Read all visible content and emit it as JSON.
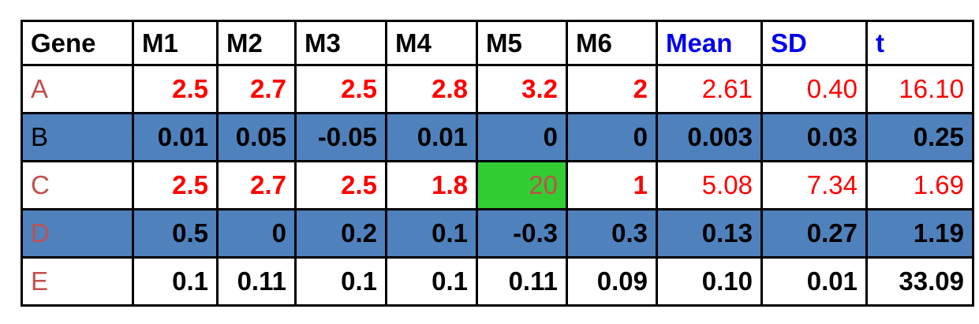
{
  "headers": [
    "Gene",
    "M1",
    "M2",
    "M3",
    "M4",
    "M5",
    "M6",
    "Mean",
    "SD",
    "t"
  ],
  "rows": [
    {
      "gene": "A",
      "values": [
        "2.5",
        "2.7",
        "2.5",
        "2.8",
        "3.2",
        "2",
        "2.61",
        "0.40",
        "16.10"
      ]
    },
    {
      "gene": "B",
      "values": [
        "0.01",
        "0.05",
        "-0.05",
        "0.01",
        "0",
        "0",
        "0.003",
        "0.03",
        "0.25"
      ]
    },
    {
      "gene": "C",
      "values": [
        "2.5",
        "2.7",
        "2.5",
        "1.8",
        "20",
        "1",
        "5.08",
        "7.34",
        "1.69"
      ]
    },
    {
      "gene": "D",
      "values": [
        "0.5",
        "0",
        "0.2",
        "0.1",
        "-0.3",
        "0.3",
        "0.13",
        "0.27",
        "1.19"
      ]
    },
    {
      "gene": "E",
      "values": [
        "0.1",
        "0.11",
        "0.1",
        "0.1",
        "0.11",
        "0.09",
        "0.10",
        "0.01",
        "33.09"
      ]
    }
  ],
  "colors": {
    "highlight_red": "#ff0000",
    "gene_label": "#c0504d",
    "header_blue": "#0000ee",
    "row_shade": "#4f81bd",
    "outlier_cell": "#33cc33"
  }
}
